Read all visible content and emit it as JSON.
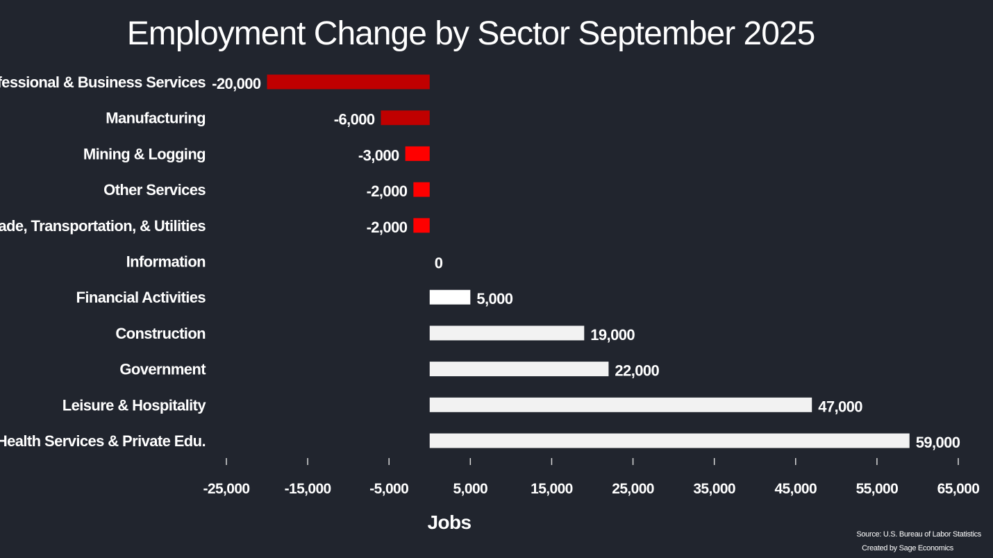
{
  "chart_data": {
    "type": "bar",
    "orientation": "horizontal",
    "title": "Employment Change by Sector September 2025",
    "xlabel": "Jobs",
    "ylabel": "",
    "xlim": [
      -25000,
      65000
    ],
    "xticks": [
      -25000,
      -15000,
      -5000,
      5000,
      15000,
      25000,
      35000,
      45000,
      55000,
      65000
    ],
    "xtick_labels": [
      "-25,000",
      "-15,000",
      "-5,000",
      "5,000",
      "15,000",
      "25,000",
      "35,000",
      "45,000",
      "55,000",
      "65,000"
    ],
    "grid": false,
    "legend": "none",
    "categories": [
      "Professional & Business Services",
      "Manufacturing",
      "Mining & Logging",
      "Other Services",
      "Trade, Transportation, & Utilities",
      "Information",
      "Financial Activities",
      "Construction",
      "Government",
      "Leisure & Hospitality",
      "Health Services & Private Edu."
    ],
    "values": [
      -20000,
      -6000,
      -3000,
      -2000,
      -2000,
      0,
      5000,
      19000,
      22000,
      47000,
      59000
    ],
    "data_labels": [
      "-20,000",
      "-6,000",
      "-3,000",
      "-2,000",
      "-2,000",
      "0",
      "5,000",
      "19,000",
      "22,000",
      "47,000",
      "59,000"
    ],
    "bar_colors": [
      "#c00000",
      "#c00000",
      "#ff0000",
      "#ff0000",
      "#ff0000",
      "#ffffff",
      "#ffffff",
      "#f2f2f2",
      "#f2f2f2",
      "#f2f2f2",
      "#f2f2f2"
    ]
  },
  "source_note": {
    "line1": "Source: U.S. Bureau of Labor Statistics",
    "line2": "Created by Sage Economics"
  },
  "colors": {
    "background": "#21252e",
    "text": "#ffffff"
  }
}
